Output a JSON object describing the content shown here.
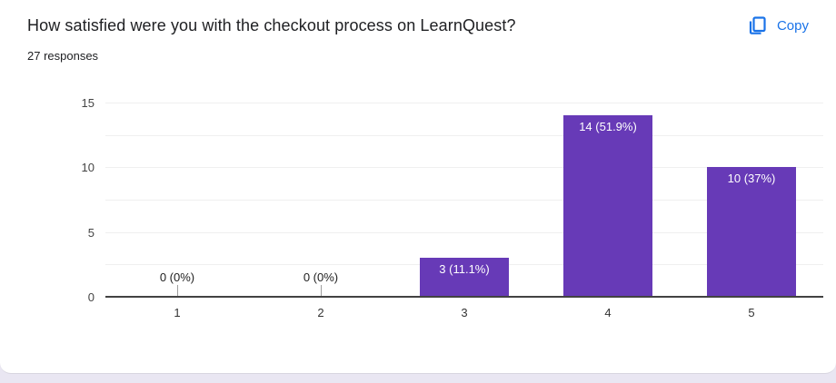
{
  "header": {
    "title": "How satisfied were you with the checkout process on LearnQuest?",
    "responses_count": "27 responses",
    "copy_label": "Copy"
  },
  "colors": {
    "bar": "#673ab7",
    "accent_blue": "#1a73e8",
    "page_background": "#e9e6f2",
    "card_background": "#ffffff",
    "gridline": "#efefef",
    "axis_line": "#424242",
    "title_text": "#202124"
  },
  "chart_data": {
    "type": "bar",
    "title": "How satisfied were you with the checkout process on LearnQuest?",
    "subtitle": "27 responses",
    "categories": [
      "1",
      "2",
      "3",
      "4",
      "5"
    ],
    "values": [
      0,
      0,
      3,
      14,
      10
    ],
    "value_labels": [
      "0 (0%)",
      "0 (0%)",
      "3 (11.1%)",
      "14 (51.9%)",
      "10 (37%)"
    ],
    "xlabel": "",
    "ylabel": "",
    "ylim": [
      0,
      15
    ],
    "yticks": [
      0,
      5,
      10,
      15
    ],
    "grid_step": 2.5,
    "grid": true,
    "legend_position": "none",
    "bar_color": "#673ab7"
  }
}
